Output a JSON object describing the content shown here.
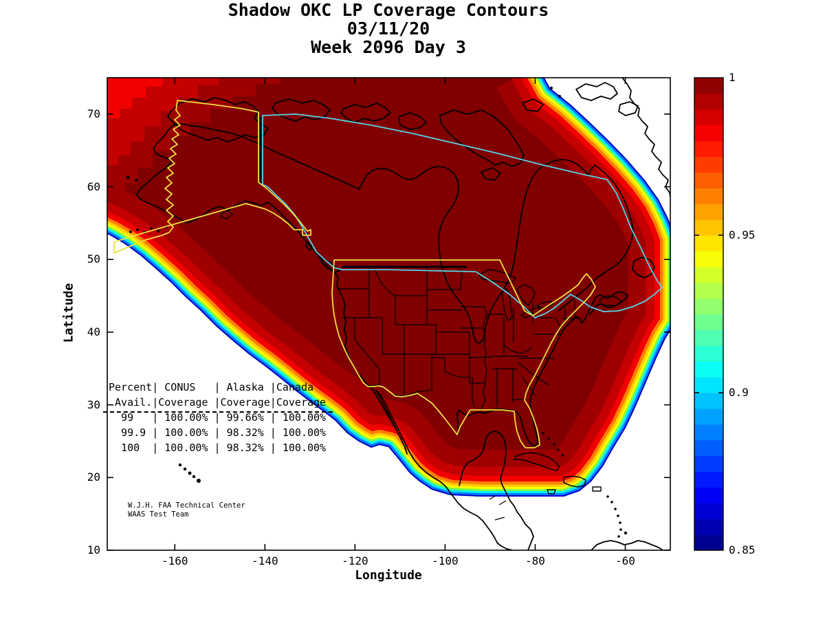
{
  "title": {
    "line1": "Shadow OKC LP Coverage Contours",
    "line2": "03/11/20",
    "line3": "Week 2096 Day 3"
  },
  "axes": {
    "xlabel": "Longitude",
    "ylabel": "Latitude",
    "xticks": [
      -160,
      -140,
      -120,
      -100,
      -80,
      -60
    ],
    "yticks": [
      10,
      20,
      30,
      40,
      50,
      60,
      70
    ],
    "xlim": [
      -175,
      -50
    ],
    "ylim": [
      10,
      75
    ]
  },
  "colorbar": {
    "tick_values": [
      1,
      0.95,
      0.9,
      0.85
    ],
    "tick_labels": [
      "1",
      "0.95",
      "0.9",
      "0.85"
    ],
    "min": 0.85,
    "max": 1,
    "colormap": "jet"
  },
  "coverage_table": {
    "header_lines": [
      "Percent| CONUS   | Alaska |Canada",
      " Avail.|Coverage |Coverage|Coverage"
    ],
    "rows": [
      "  99   | 100.00% | 99.66% | 100.00%",
      "  99.9 | 100.00% | 98.32% | 100.00%",
      "  100  | 100.00% | 98.32% | 100.00%"
    ]
  },
  "attribution": {
    "line1": "W.J.H. FAA Technical Center",
    "line2": "WAAS Test Team"
  },
  "colors": {
    "background": "#FFFFFF",
    "coverage_interior": "#800000",
    "conus_alaska_boundary": "#F0E040",
    "canada_boundary": "#55D4E8",
    "coastline": "#000000"
  },
  "chart_data": {
    "type": "filled_contour_map",
    "title": "Shadow OKC LP Coverage Contours",
    "date": "03/11/20",
    "week": 2096,
    "day": 3,
    "xlabel": "Longitude",
    "ylabel": "Latitude",
    "xlim": [
      -175,
      -50
    ],
    "ylim": [
      10,
      75
    ],
    "xticks": [
      -160,
      -140,
      -120,
      -100,
      -80,
      -60
    ],
    "yticks": [
      10,
      20,
      30,
      40,
      50,
      60,
      70
    ],
    "colorbar": {
      "range": [
        0.85,
        1
      ],
      "tick_labels": [
        "1",
        "0.95",
        "0.9",
        "0.85"
      ],
      "colormap": "jet"
    },
    "availability_table": {
      "columns": [
        "Percent Avail.",
        "CONUS Coverage",
        "Alaska Coverage",
        "Canada Coverage"
      ],
      "rows": [
        [
          99,
          "100.00%",
          "99.66%",
          "100.00%"
        ],
        [
          99.9,
          "100.00%",
          "98.32%",
          "100.00%"
        ],
        [
          100,
          "100.00%",
          "98.32%",
          "100.00%"
        ]
      ]
    },
    "regions_outlined": [
      "CONUS",
      "Alaska",
      "Canada"
    ],
    "grid": false,
    "legend_position": "right-colorbar"
  }
}
